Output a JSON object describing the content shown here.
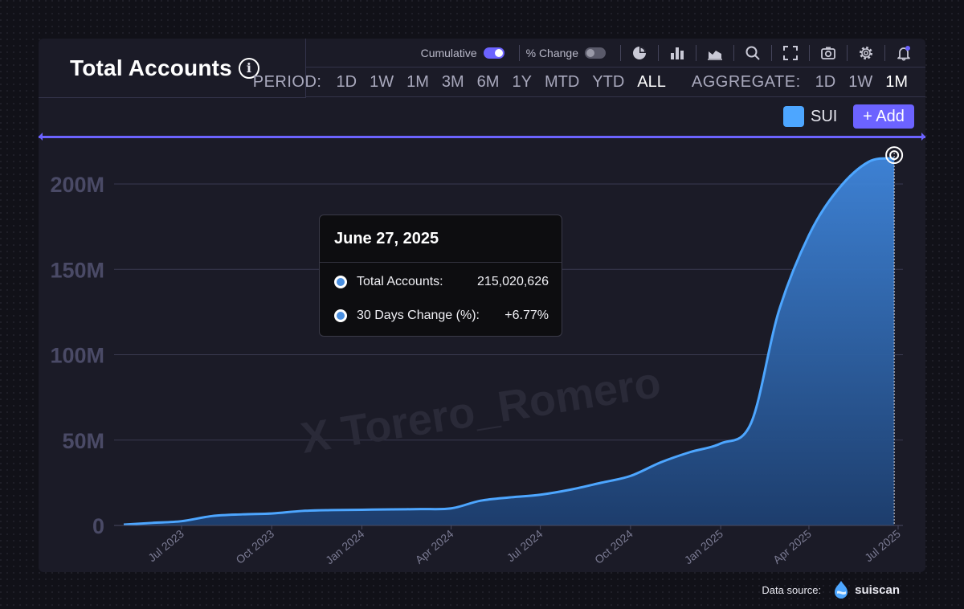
{
  "header": {
    "title": "Total Accounts"
  },
  "toolbar": {
    "cumulative_label": "Cumulative",
    "cumulative_on": true,
    "pct_change_label": "% Change",
    "pct_change_on": false,
    "icons": [
      "pie-chart-icon",
      "bar-chart-icon",
      "area-chart-icon",
      "search-icon",
      "fullscreen-icon",
      "camera-icon",
      "gear-icon",
      "bell-icon"
    ]
  },
  "period": {
    "label": "PERIOD:",
    "options": [
      "1D",
      "1W",
      "1M",
      "3M",
      "6M",
      "1Y",
      "MTD",
      "YTD",
      "ALL"
    ],
    "selected": "ALL"
  },
  "aggregate": {
    "label": "AGGREGATE:",
    "options": [
      "1D",
      "1W",
      "1M"
    ],
    "selected": "1M"
  },
  "legend": {
    "series_name": "SUI",
    "color": "#4da6ff",
    "add_label": "+ Add"
  },
  "tooltip": {
    "date": "June 27, 2025",
    "rows": [
      {
        "label": "Total Accounts:",
        "value": "215,020,626"
      },
      {
        "label": "30 Days Change (%):",
        "value": "+6.77%"
      }
    ]
  },
  "watermark": "X Torero_Romero",
  "footer": {
    "data_source_label": "Data source:",
    "brand": "suiscan"
  },
  "chart_data": {
    "type": "area",
    "title": "Total Accounts",
    "x_tick_labels": [
      "Jul 2023",
      "Oct 2023",
      "Jan 2024",
      "Apr 2024",
      "Jul 2024",
      "Oct 2024",
      "Jan 2025",
      "Apr 2025",
      "Jul 2025"
    ],
    "y_tick_labels": [
      "0",
      "50M",
      "100M",
      "150M",
      "200M"
    ],
    "ylim": [
      0,
      220000000
    ],
    "grid": true,
    "series": [
      {
        "name": "SUI",
        "color": "#4da6ff",
        "x": [
          "2023-05-03",
          "2023-06-01",
          "2023-07-01",
          "2023-08-01",
          "2023-09-01",
          "2023-10-01",
          "2023-11-01",
          "2023-12-01",
          "2024-01-01",
          "2024-02-01",
          "2024-03-01",
          "2024-04-01",
          "2024-05-01",
          "2024-06-01",
          "2024-07-01",
          "2024-08-01",
          "2024-09-01",
          "2024-10-01",
          "2024-11-01",
          "2024-12-01",
          "2025-01-01",
          "2025-02-01",
          "2025-03-01",
          "2025-04-01",
          "2025-05-01",
          "2025-06-01",
          "2025-06-27"
        ],
        "values": [
          500000,
          1500000,
          2500000,
          5500000,
          6500000,
          7000000,
          8500000,
          9000000,
          9200000,
          9400000,
          9600000,
          10000000,
          14500000,
          16500000,
          18000000,
          21000000,
          25000000,
          29000000,
          37000000,
          43000000,
          48000000,
          60000000,
          125000000,
          170000000,
          197000000,
          213000000,
          215020626
        ]
      }
    ],
    "crosshair_date": "2025-06-27"
  }
}
